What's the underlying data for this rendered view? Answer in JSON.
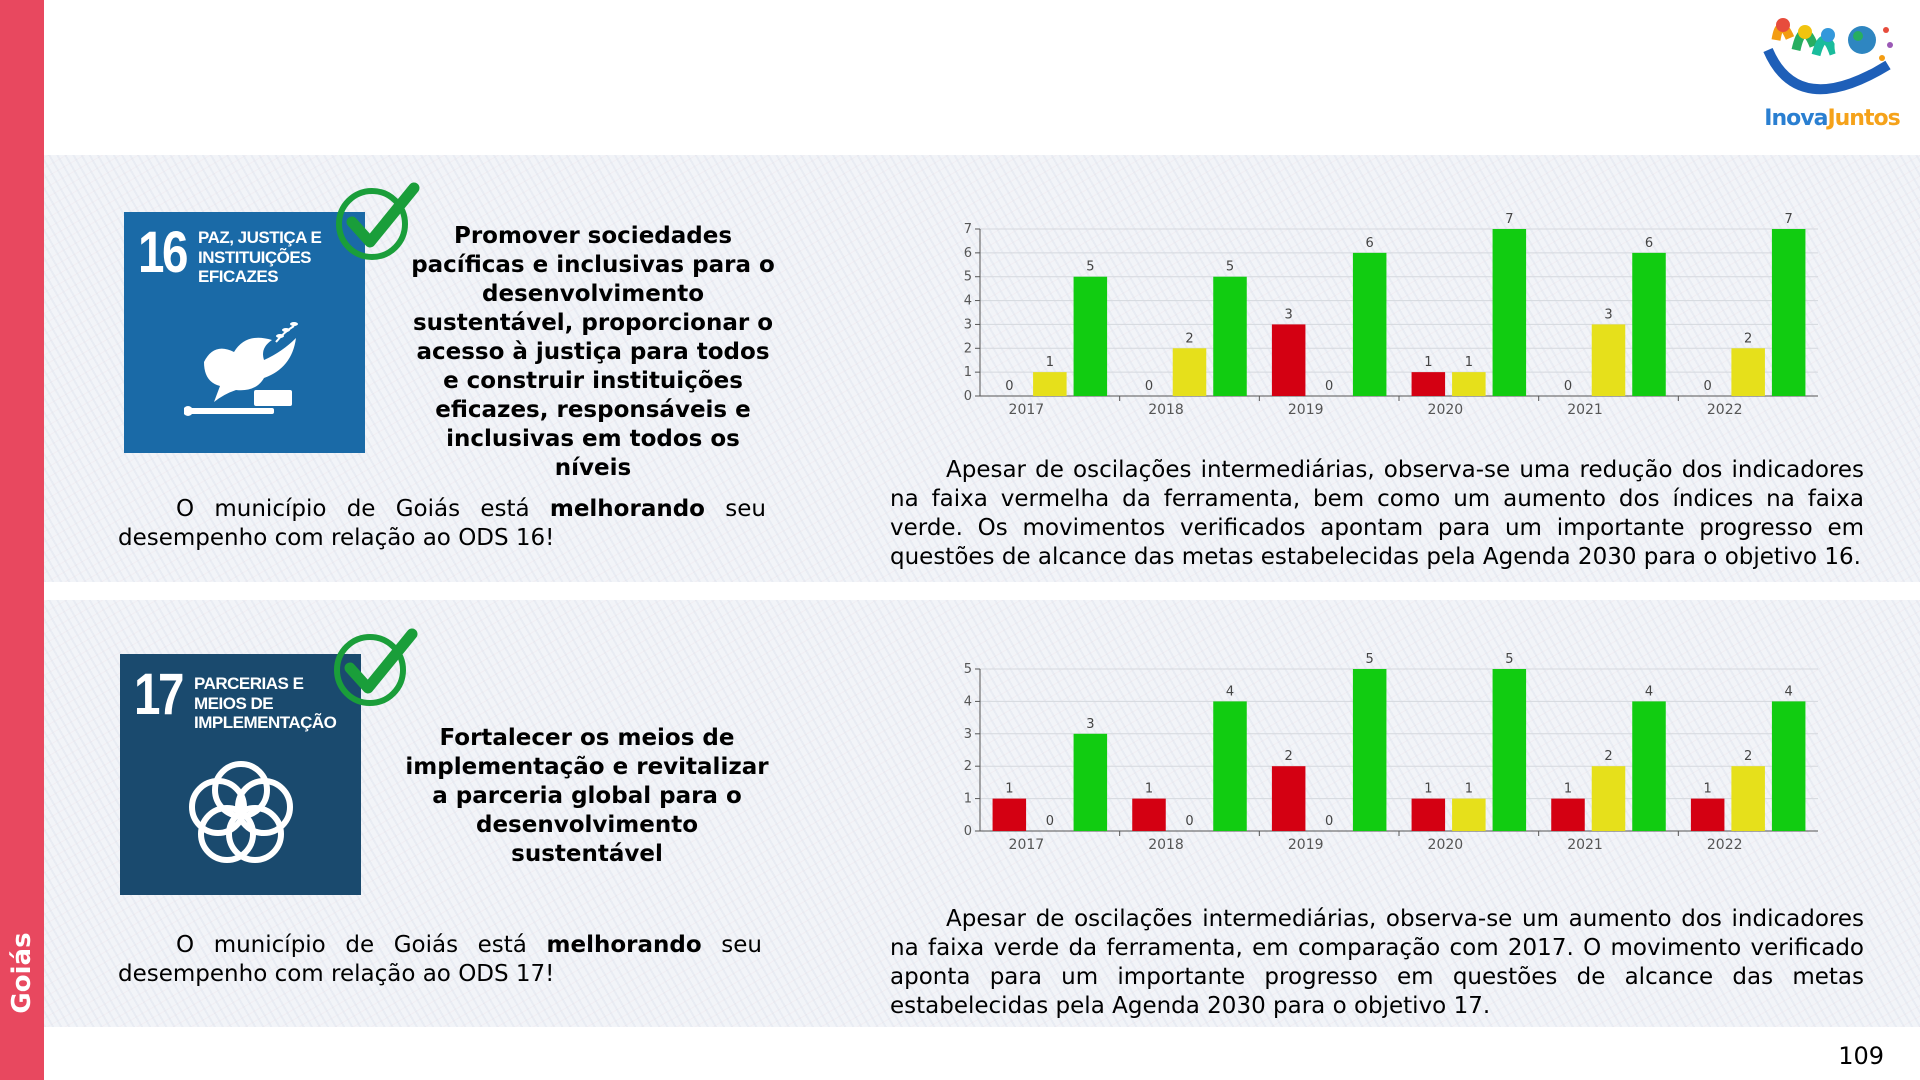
{
  "sidebar": {
    "label": "Goiás"
  },
  "logo": {
    "text_a": "Inova",
    "text_b": "Juntos"
  },
  "page_number": "109",
  "colors": {
    "red": "#d40012",
    "yellow": "#e6e01b",
    "green": "#11cc11",
    "sidebar": "#e8485f"
  },
  "section16": {
    "sdg_number": "16",
    "sdg_name": "PAZ, JUSTIÇA E INSTITUIÇÕES EFICAZES",
    "sdg_icon": "dove-gavel-icon",
    "goal_title": "Promover sociedades pacíficas e inclusivas para o desenvolvimento sustentável, proporcionar o acesso à justiça para todos e construir instituições eficazes, responsáveis e inclusivas em todos os níveis",
    "municipality": {
      "w1": "O",
      "w2": "município",
      "w3": "de",
      "w4": "Goiás",
      "w5": "está",
      "w6": "melhorando",
      "w7": "seu",
      "line2": "desempenho com relação ao ODS 16!"
    },
    "description": "Apesar de oscilações intermediárias, observa-se uma redução dos indicadores na faixa vermelha da ferramenta, bem como um aumento dos índices na faixa verde. Os movimentos verificados apontam para um importante progresso em questões de alcance das metas estabelecidas pela Agenda 2030 para o objetivo 16."
  },
  "section17": {
    "sdg_number": "17",
    "sdg_name": "PARCERIAS E MEIOS DE IMPLEMENTAÇÃO",
    "sdg_icon": "interlocking-rings-icon",
    "goal_title": "Fortalecer os meios de implementação e revitalizar a parceria global para o desenvolvimento sustentável",
    "municipality": {
      "w1": "O",
      "w2": "município",
      "w3": "de",
      "w4": "Goiás",
      "w5": "está",
      "w6": "melhorando",
      "w7": "seu",
      "line2": "desempenho com relação ao ODS 17!"
    },
    "description": "Apesar de oscilações intermediárias, observa-se um aumento dos indicadores na faixa verde da ferramenta, em comparação com 2017. O movimento verificado aponta para um importante progresso em questões de alcance das metas estabelecidas pela Agenda 2030 para o objetivo 17."
  },
  "chart_data": [
    {
      "type": "bar",
      "categories": [
        "2017",
        "2018",
        "2019",
        "2020",
        "2021",
        "2022"
      ],
      "series": [
        {
          "color": "#d40012",
          "values": [
            0,
            0,
            3,
            1,
            0,
            0
          ]
        },
        {
          "color": "#e6e01b",
          "values": [
            1,
            2,
            0,
            1,
            3,
            2
          ]
        },
        {
          "color": "#11cc11",
          "values": [
            5,
            5,
            6,
            7,
            6,
            7
          ]
        }
      ],
      "yticks": [
        "0",
        "1",
        "2",
        "3",
        "4",
        "5",
        "6",
        "7"
      ],
      "ylim": [
        0,
        7
      ],
      "grid": true,
      "legend": "none"
    },
    {
      "type": "bar",
      "categories": [
        "2017",
        "2018",
        "2019",
        "2020",
        "2021",
        "2022"
      ],
      "series": [
        {
          "color": "#d40012",
          "values": [
            1,
            1,
            2,
            1,
            1,
            1
          ]
        },
        {
          "color": "#e6e01b",
          "values": [
            0,
            0,
            0,
            1,
            2,
            2
          ]
        },
        {
          "color": "#11cc11",
          "values": [
            3,
            4,
            5,
            5,
            4,
            4
          ]
        }
      ],
      "yticks": [
        "0",
        "1",
        "2",
        "3",
        "4",
        "5"
      ],
      "ylim": [
        0,
        5
      ],
      "grid": true,
      "legend": "none"
    }
  ]
}
